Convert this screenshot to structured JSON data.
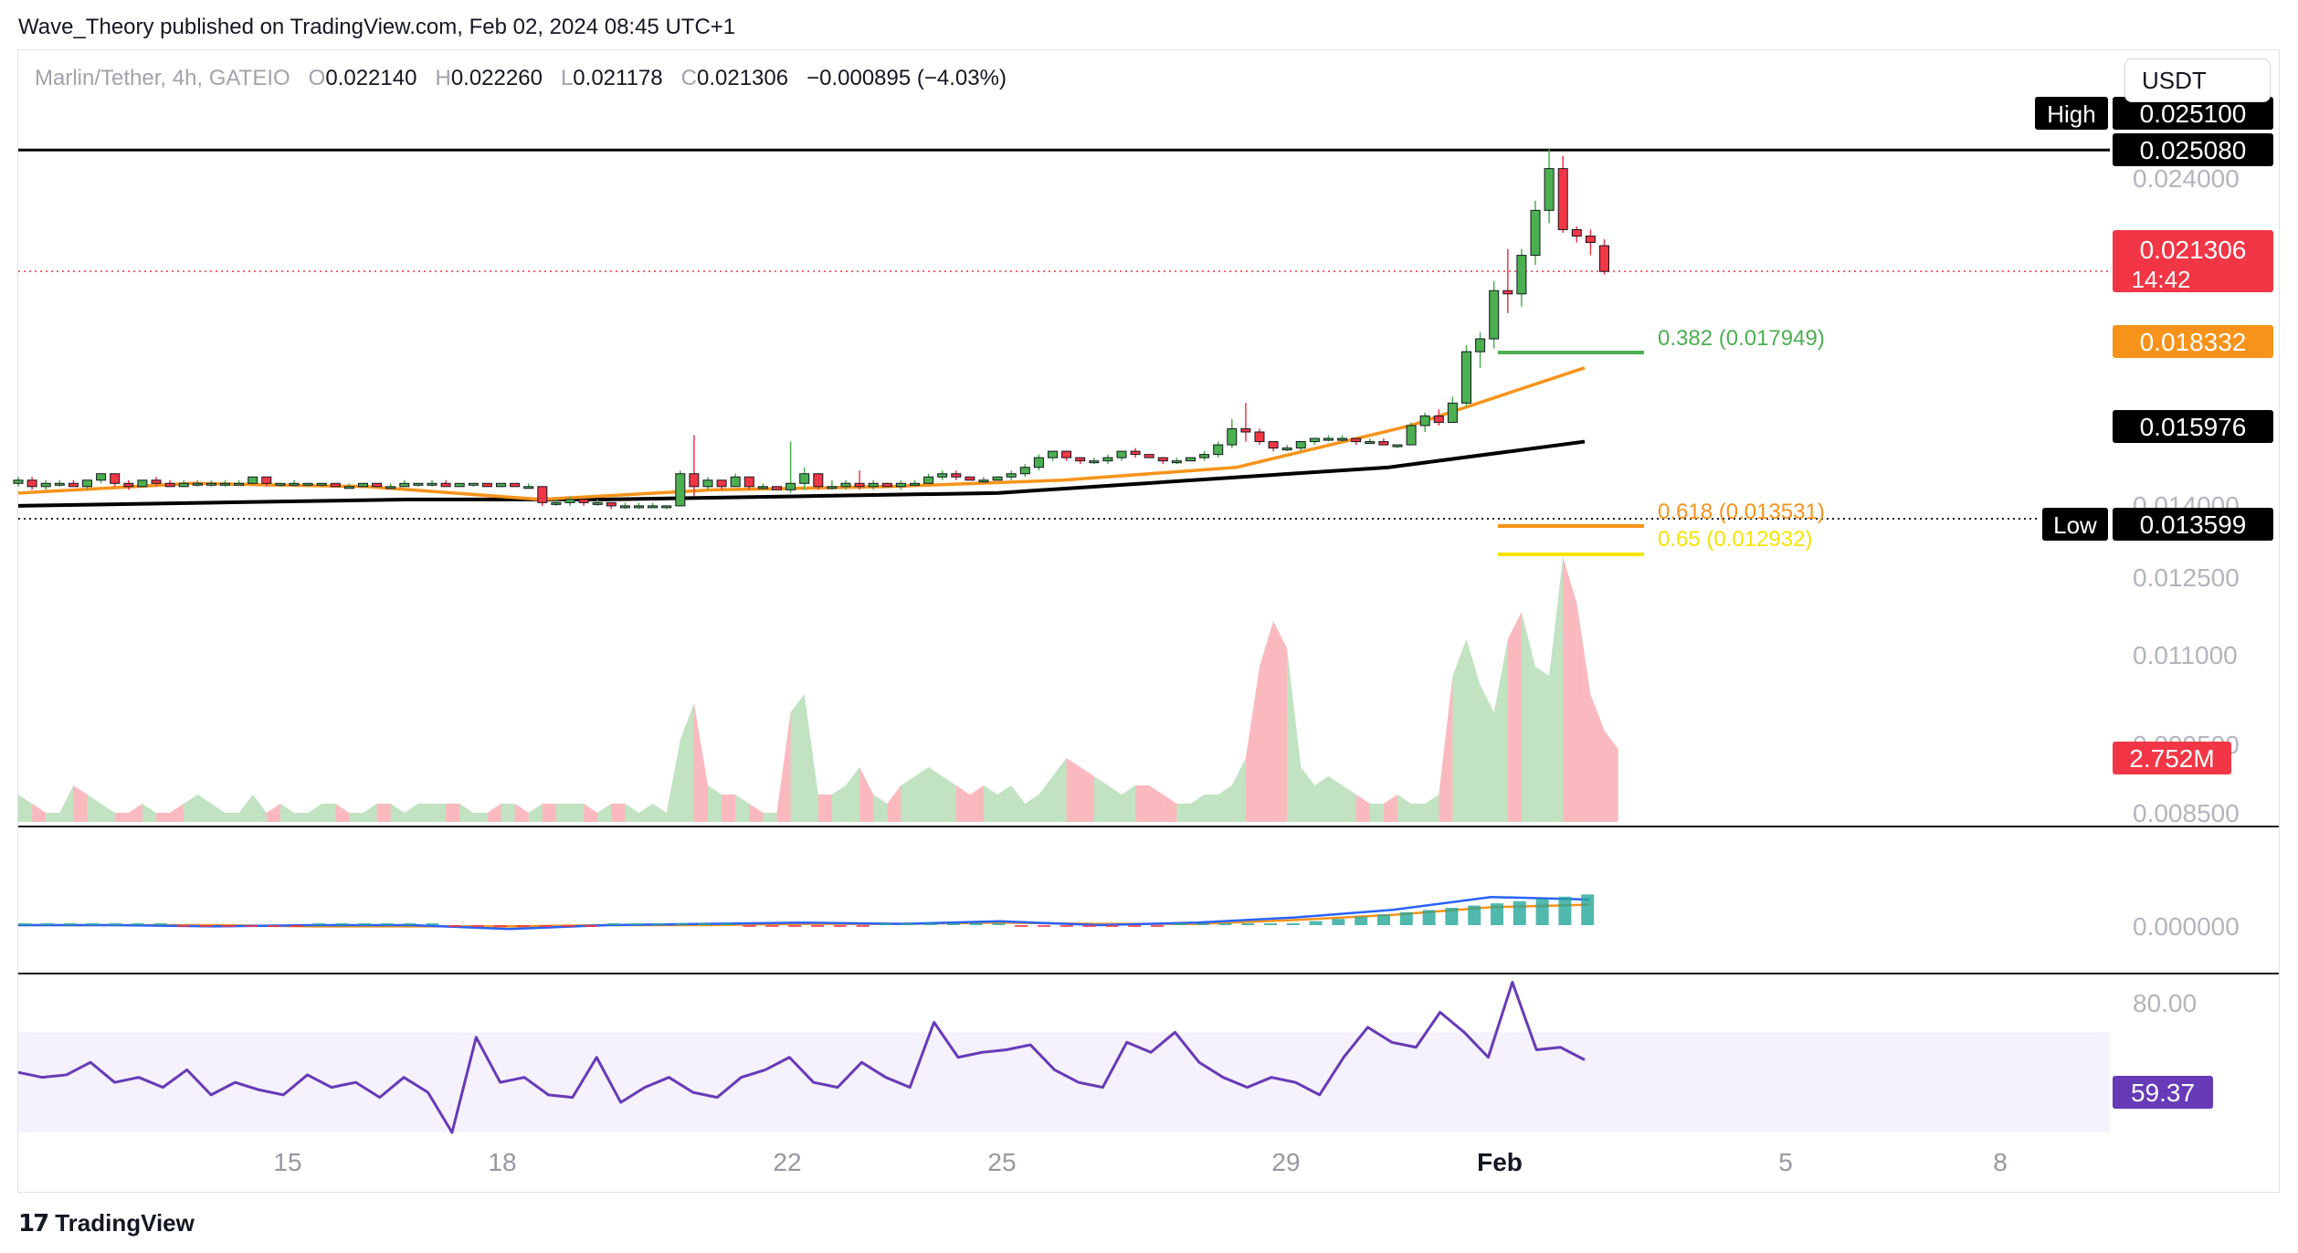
{
  "header": {
    "publisher_line": "Wave_Theory published on TradingView.com, Feb 02, 2024 08:45 UTC+1",
    "brand": "TradingView",
    "brand_icon": "tradingview-logo-icon"
  },
  "legend": {
    "symbol": "Marlin/Tether, 4h, GATEIO",
    "open_label": "O",
    "open": "0.022140",
    "high_label": "H",
    "high": "0.022260",
    "low_label": "L",
    "low": "0.021178",
    "close_label": "C",
    "close": "0.021306",
    "change": "−0.000895 (−4.03%)"
  },
  "currency_button": "USDT",
  "price_tags": {
    "high_label": "High",
    "high_value": "0.025100",
    "resistance": "0.025080",
    "last": "0.021306",
    "countdown": "14:42",
    "ema_orange": "0.018332",
    "ema_black": "0.015976",
    "low_label": "Low",
    "low_value": "0.013599",
    "volume": "2.752M",
    "rsi": "59.37"
  },
  "colors": {
    "up": "#4caf50",
    "down": "#f23645",
    "ema_fast": "#f7931a",
    "ema_slow": "#000000",
    "fib_382": "#4caf50",
    "fib_618": "#f7931a",
    "fib_65": "#f5e400",
    "macd": "#2962ff",
    "rsi": "#673ab7",
    "rsi_band": "#f5f1fd"
  },
  "chart_data": [
    {
      "type": "candlestick",
      "title": "Marlin/Tether, 4h, GATEIO",
      "x_ticks": [
        "15",
        "18",
        "22",
        "25",
        "29",
        "Feb",
        "5",
        "8"
      ],
      "y_ticks": [
        "0.024000",
        "0.014000",
        "0.012500",
        "0.011000",
        "0.009500",
        "0.008500"
      ],
      "y_range": [
        0.0134,
        0.0252
      ],
      "candles_ohlc": [
        [
          0.0147,
          0.0149,
          0.0146,
          0.0148
        ],
        [
          0.0148,
          0.0149,
          0.0145,
          0.0146
        ],
        [
          0.0146,
          0.0148,
          0.0145,
          0.0147
        ],
        [
          0.0147,
          0.0148,
          0.0146,
          0.0147
        ],
        [
          0.0147,
          0.0148,
          0.0146,
          0.0146
        ],
        [
          0.0146,
          0.0148,
          0.0145,
          0.0148
        ],
        [
          0.0148,
          0.015,
          0.0147,
          0.015
        ],
        [
          0.015,
          0.015,
          0.0146,
          0.0147
        ],
        [
          0.0147,
          0.0148,
          0.0145,
          0.0146
        ],
        [
          0.0146,
          0.0148,
          0.0146,
          0.0148
        ],
        [
          0.0148,
          0.0149,
          0.0146,
          0.0147
        ],
        [
          0.0147,
          0.0148,
          0.0146,
          0.0146
        ],
        [
          0.0146,
          0.0148,
          0.0146,
          0.0147
        ],
        [
          0.0147,
          0.0148,
          0.0146,
          0.0147
        ],
        [
          0.0147,
          0.0148,
          0.0146,
          0.0147
        ],
        [
          0.0147,
          0.0148,
          0.0146,
          0.0147
        ],
        [
          0.0147,
          0.0148,
          0.0147,
          0.0147
        ],
        [
          0.0147,
          0.0149,
          0.0147,
          0.0149
        ],
        [
          0.0149,
          0.0149,
          0.0146,
          0.0147
        ],
        [
          0.0147,
          0.0147,
          0.0146,
          0.0147
        ],
        [
          0.0147,
          0.0148,
          0.0146,
          0.0147
        ],
        [
          0.0147,
          0.0147,
          0.0146,
          0.0147
        ],
        [
          0.0147,
          0.0147,
          0.0146,
          0.0147
        ],
        [
          0.0147,
          0.0147,
          0.0146,
          0.0146
        ],
        [
          0.0146,
          0.0147,
          0.0146,
          0.0146
        ],
        [
          0.0146,
          0.0147,
          0.0146,
          0.0147
        ],
        [
          0.0147,
          0.0147,
          0.0146,
          0.0146
        ],
        [
          0.0146,
          0.0147,
          0.0146,
          0.0146
        ],
        [
          0.0146,
          0.0148,
          0.0146,
          0.0147
        ],
        [
          0.0147,
          0.0147,
          0.0146,
          0.0147
        ],
        [
          0.0147,
          0.0148,
          0.0146,
          0.0147
        ],
        [
          0.0147,
          0.0148,
          0.0146,
          0.0146
        ],
        [
          0.0146,
          0.0147,
          0.0146,
          0.0147
        ],
        [
          0.0147,
          0.0147,
          0.0146,
          0.0147
        ],
        [
          0.0147,
          0.0147,
          0.0146,
          0.0146
        ],
        [
          0.0146,
          0.0147,
          0.0146,
          0.0147
        ],
        [
          0.0147,
          0.0147,
          0.0146,
          0.0146
        ],
        [
          0.0146,
          0.0147,
          0.0146,
          0.0146
        ],
        [
          0.0146,
          0.0146,
          0.014,
          0.0141
        ],
        [
          0.0141,
          0.0142,
          0.014,
          0.0141
        ],
        [
          0.0141,
          0.0143,
          0.014,
          0.0142
        ],
        [
          0.0142,
          0.0142,
          0.014,
          0.0141
        ],
        [
          0.0141,
          0.0142,
          0.014,
          0.0141
        ],
        [
          0.0141,
          0.0141,
          0.0139,
          0.014
        ],
        [
          0.014,
          0.0141,
          0.0139,
          0.014
        ],
        [
          0.014,
          0.0141,
          0.0139,
          0.014
        ],
        [
          0.014,
          0.0141,
          0.014,
          0.014
        ],
        [
          0.014,
          0.014,
          0.0139,
          0.014
        ],
        [
          0.014,
          0.0151,
          0.014,
          0.015
        ],
        [
          0.015,
          0.0162,
          0.0143,
          0.0146
        ],
        [
          0.0146,
          0.0149,
          0.0145,
          0.0148
        ],
        [
          0.0148,
          0.0148,
          0.0145,
          0.0146
        ],
        [
          0.0146,
          0.015,
          0.0146,
          0.0149
        ],
        [
          0.0149,
          0.0149,
          0.0145,
          0.0146
        ],
        [
          0.0146,
          0.0147,
          0.0145,
          0.0146
        ],
        [
          0.0146,
          0.0146,
          0.0145,
          0.0145
        ],
        [
          0.0145,
          0.016,
          0.0144,
          0.0147
        ],
        [
          0.0147,
          0.0152,
          0.0145,
          0.015
        ],
        [
          0.015,
          0.015,
          0.0145,
          0.0146
        ],
        [
          0.0146,
          0.0148,
          0.0145,
          0.0146
        ],
        [
          0.0146,
          0.0148,
          0.0145,
          0.0147
        ],
        [
          0.0147,
          0.0151,
          0.0145,
          0.0146
        ],
        [
          0.0146,
          0.0148,
          0.0145,
          0.0147
        ],
        [
          0.0147,
          0.0147,
          0.0146,
          0.0146
        ],
        [
          0.0146,
          0.0148,
          0.0145,
          0.0147
        ],
        [
          0.0147,
          0.0148,
          0.0146,
          0.0147
        ],
        [
          0.0147,
          0.015,
          0.0147,
          0.0149
        ],
        [
          0.0149,
          0.0151,
          0.0148,
          0.015
        ],
        [
          0.015,
          0.0151,
          0.0148,
          0.0149
        ],
        [
          0.0149,
          0.0149,
          0.0148,
          0.0148
        ],
        [
          0.0148,
          0.0149,
          0.0148,
          0.0148
        ],
        [
          0.0148,
          0.0149,
          0.0148,
          0.0149
        ],
        [
          0.0149,
          0.0151,
          0.0148,
          0.015
        ],
        [
          0.015,
          0.0153,
          0.0149,
          0.0152
        ],
        [
          0.0152,
          0.0156,
          0.0151,
          0.0155
        ],
        [
          0.0155,
          0.0157,
          0.0154,
          0.0157
        ],
        [
          0.0157,
          0.0157,
          0.0154,
          0.0155
        ],
        [
          0.0155,
          0.0155,
          0.0153,
          0.0154
        ],
        [
          0.0154,
          0.0155,
          0.0153,
          0.0154
        ],
        [
          0.0154,
          0.0156,
          0.0153,
          0.0155
        ],
        [
          0.0155,
          0.0157,
          0.0154,
          0.0157
        ],
        [
          0.0157,
          0.0158,
          0.0155,
          0.0156
        ],
        [
          0.0156,
          0.0156,
          0.0155,
          0.0155
        ],
        [
          0.0155,
          0.0155,
          0.0153,
          0.0154
        ],
        [
          0.0154,
          0.0155,
          0.0153,
          0.0154
        ],
        [
          0.0154,
          0.0155,
          0.0154,
          0.0155
        ],
        [
          0.0155,
          0.0157,
          0.0154,
          0.0156
        ],
        [
          0.0156,
          0.016,
          0.0155,
          0.0159
        ],
        [
          0.0159,
          0.0167,
          0.0158,
          0.0164
        ],
        [
          0.0164,
          0.0172,
          0.016,
          0.0163
        ],
        [
          0.0163,
          0.0164,
          0.0159,
          0.016
        ],
        [
          0.016,
          0.016,
          0.0157,
          0.0158
        ],
        [
          0.0158,
          0.0159,
          0.0157,
          0.0158
        ],
        [
          0.0158,
          0.016,
          0.0157,
          0.016
        ],
        [
          0.016,
          0.0161,
          0.0159,
          0.0161
        ],
        [
          0.0161,
          0.0162,
          0.016,
          0.0161
        ],
        [
          0.0161,
          0.0162,
          0.016,
          0.0161
        ],
        [
          0.0161,
          0.0161,
          0.0159,
          0.016
        ],
        [
          0.016,
          0.0161,
          0.016,
          0.016
        ],
        [
          0.016,
          0.0161,
          0.0159,
          0.0159
        ],
        [
          0.0159,
          0.0159,
          0.0158,
          0.0159
        ],
        [
          0.0159,
          0.0166,
          0.0159,
          0.0165
        ],
        [
          0.0165,
          0.0169,
          0.0163,
          0.0168
        ],
        [
          0.0168,
          0.017,
          0.0165,
          0.0166
        ],
        [
          0.0166,
          0.0174,
          0.0166,
          0.0172
        ],
        [
          0.0172,
          0.019,
          0.0171,
          0.0188
        ],
        [
          0.0188,
          0.0194,
          0.0183,
          0.0192
        ],
        [
          0.0192,
          0.021,
          0.0189,
          0.0207
        ],
        [
          0.0207,
          0.022,
          0.02,
          0.0206
        ],
        [
          0.0206,
          0.022,
          0.0202,
          0.0218
        ],
        [
          0.0218,
          0.0235,
          0.0215,
          0.0232
        ],
        [
          0.0232,
          0.0251,
          0.0228,
          0.0245
        ],
        [
          0.0245,
          0.0249,
          0.0225,
          0.0226
        ],
        [
          0.0226,
          0.0227,
          0.0222,
          0.0224
        ],
        [
          0.0224,
          0.0226,
          0.0218,
          0.0222
        ],
        [
          0.0221,
          0.0223,
          0.0212,
          0.0213
        ]
      ],
      "ema_fast_values": [
        0.0144,
        0.0147,
        0.0146,
        0.0142,
        0.0145,
        0.0146,
        0.0148,
        0.0152,
        0.0165,
        0.0183
      ],
      "ema_slow_values": [
        0.014,
        0.0141,
        0.0142,
        0.0142,
        0.0143,
        0.0144,
        0.0148,
        0.0152,
        0.016
      ],
      "fibonacci": [
        {
          "label": "0.382 (0.017949)",
          "value": 0.017949
        },
        {
          "label": "0.618 (0.013531)",
          "value": 0.013531
        },
        {
          "label": "0.65 (0.012932)",
          "value": 0.012932
        }
      ],
      "resistance_value": 0.02508,
      "low_value": 0.013599,
      "volume_values": [
        3,
        2,
        1,
        1,
        4,
        3,
        2,
        1,
        1,
        2,
        1,
        1,
        2,
        3,
        2,
        1,
        1,
        3,
        1,
        2,
        1,
        1,
        2,
        2,
        1,
        1,
        2,
        2,
        1,
        2,
        2,
        2,
        2,
        1,
        1,
        2,
        2,
        1,
        2,
        2,
        2,
        2,
        1,
        2,
        2,
        1,
        2,
        1,
        9,
        13,
        4,
        3,
        3,
        2,
        1,
        1,
        12,
        14,
        3,
        3,
        4,
        6,
        3,
        2,
        4,
        5,
        6,
        5,
        4,
        3,
        4,
        3,
        4,
        2,
        3,
        5,
        7,
        6,
        5,
        4,
        3,
        4,
        4,
        3,
        2,
        2,
        3,
        3,
        4,
        7,
        17,
        22,
        19,
        6,
        4,
        5,
        4,
        3,
        2,
        2,
        3,
        2,
        2,
        3,
        16,
        20,
        15,
        12,
        20,
        23,
        17,
        16,
        29,
        24,
        14,
        10,
        8
      ]
    },
    {
      "type": "line",
      "title": "MACD",
      "y_ticks": [
        "0.000000"
      ],
      "macd_values": [
        0,
        0,
        -0.1,
        0,
        0,
        -0.3,
        0,
        0.1,
        0.2,
        0.1,
        0.3,
        0,
        0.2,
        0.6,
        1.2,
        2.2,
        2.0
      ],
      "signal_values": [
        0,
        0,
        0,
        -0.1,
        -0.1,
        -0.1,
        0,
        0,
        0.1,
        0.1,
        0.2,
        0.1,
        0.1,
        0.4,
        0.8,
        1.4,
        1.6
      ]
    },
    {
      "type": "line",
      "title": "RSI",
      "y_ticks": [
        "80.00"
      ],
      "band": [
        30,
        70
      ],
      "rsi_values": [
        54,
        52,
        53,
        58,
        50,
        52,
        48,
        55,
        45,
        50,
        47,
        45,
        53,
        48,
        50,
        44,
        52,
        46,
        30,
        68,
        50,
        52,
        45,
        44,
        60,
        42,
        48,
        52,
        46,
        44,
        52,
        55,
        60,
        50,
        48,
        58,
        52,
        48,
        74,
        60,
        62,
        63,
        65,
        55,
        50,
        48,
        66,
        62,
        70,
        58,
        52,
        48,
        52,
        50,
        45,
        60,
        72,
        66,
        64,
        78,
        70,
        60,
        90,
        63,
        64,
        59
      ]
    }
  ]
}
